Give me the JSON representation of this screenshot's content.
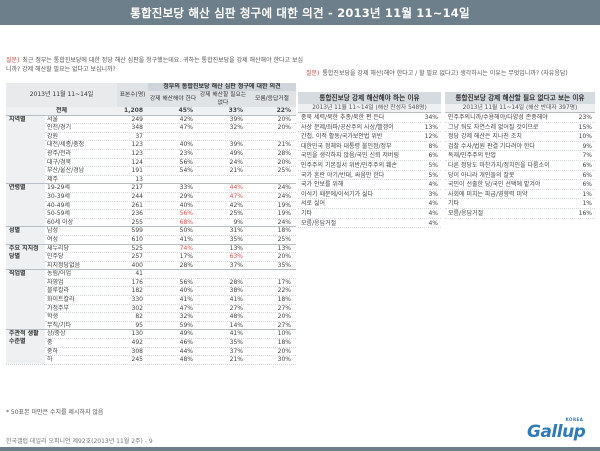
{
  "header": {
    "title": "통합진보당 해산 심판 청구에 대한 의견 - 2013년 11월 11~14일"
  },
  "question_left": {
    "mark": "질문)",
    "text": "최근 정부는 통합진보당에 대한 정당 해산 심판을 청구했는데요. 귀하는 통합진보당을 강제 해산해야 한다고 보십니까? 강제 해산할 필요는 없다고 보십니까?"
  },
  "question_right": {
    "mark": "질문)",
    "text": "통합진보당을 강제 해산(해야 한다고 / 할 필요 없다고) 생각하시는 이유는 무엇입니까? (자유응답)"
  },
  "table": {
    "period": "2013년 11월 11~14일",
    "base_label": "표본수(명)",
    "span_header": "정부의 통합진보당 해산 심판 청구에 대한 의견",
    "col_dissolve": "강제 해산해야 한다",
    "col_no_need": "강제 해산할 필요는 없다",
    "col_unsure": "모름/응답거절",
    "total": {
      "label": "전체",
      "n": "1,208",
      "a": "45%",
      "b": "33%",
      "c": "22%"
    },
    "groups": [
      {
        "cat": "지역별",
        "rows": [
          {
            "label": "서울",
            "n": "249",
            "a": "42%",
            "b": "39%",
            "c": "20%"
          },
          {
            "label": "인천/경기",
            "n": "348",
            "a": "47%",
            "b": "32%",
            "c": "20%"
          },
          {
            "label": "강원",
            "n": "37",
            "a": "",
            "b": "",
            "c": ""
          },
          {
            "label": "대전/세종/충청",
            "n": "123",
            "a": "40%",
            "b": "39%",
            "c": "21%"
          },
          {
            "label": "광주/전라",
            "n": "123",
            "a": "23%",
            "b": "49%",
            "c": "28%"
          },
          {
            "label": "대구/경북",
            "n": "124",
            "a": "56%",
            "b": "24%",
            "c": "20%"
          },
          {
            "label": "부산/울산/경남",
            "n": "191",
            "a": "54%",
            "b": "21%",
            "c": "25%"
          },
          {
            "label": "제주",
            "n": "13",
            "a": "",
            "b": "",
            "c": ""
          }
        ]
      },
      {
        "cat": "연령별",
        "rows": [
          {
            "label": "19-29세",
            "n": "217",
            "a": "33%",
            "b": "44%",
            "c": "24%",
            "b_red": true
          },
          {
            "label": "30-39세",
            "n": "244",
            "a": "29%",
            "b": "47%",
            "c": "24%",
            "b_red": true
          },
          {
            "label": "40-49세",
            "n": "261",
            "a": "40%",
            "b": "42%",
            "c": "19%"
          },
          {
            "label": "50-59세",
            "n": "236",
            "a": "56%",
            "b": "25%",
            "c": "19%",
            "a_red": true
          },
          {
            "label": "60세 이상",
            "n": "255",
            "a": "68%",
            "b": "9%",
            "c": "24%",
            "a_red": true
          }
        ]
      },
      {
        "cat": "성별",
        "rows": [
          {
            "label": "남성",
            "n": "599",
            "a": "50%",
            "b": "31%",
            "c": "18%"
          },
          {
            "label": "여성",
            "n": "610",
            "a": "41%",
            "b": "35%",
            "c": "25%"
          }
        ]
      },
      {
        "cat": "주요 지지정당별",
        "rows": [
          {
            "label": "새누리당",
            "n": "525",
            "a": "74%",
            "b": "13%",
            "c": "13%",
            "a_red": true
          },
          {
            "label": "민주당",
            "n": "257",
            "a": "17%",
            "b": "63%",
            "c": "20%",
            "b_red": true
          },
          {
            "label": "지지정당없음",
            "n": "400",
            "a": "28%",
            "b": "37%",
            "c": "35%"
          }
        ]
      },
      {
        "cat": "직업별",
        "rows": [
          {
            "label": "농림/어업",
            "n": "41",
            "a": "",
            "b": "",
            "c": ""
          },
          {
            "label": "자영업",
            "n": "176",
            "a": "56%",
            "b": "28%",
            "c": "17%"
          },
          {
            "label": "블루칼라",
            "n": "182",
            "a": "40%",
            "b": "38%",
            "c": "22%"
          },
          {
            "label": "화이트칼라",
            "n": "330",
            "a": "41%",
            "b": "41%",
            "c": "18%"
          },
          {
            "label": "가정주부",
            "n": "302",
            "a": "47%",
            "b": "27%",
            "c": "27%"
          },
          {
            "label": "학생",
            "n": "82",
            "a": "32%",
            "b": "48%",
            "c": "20%"
          },
          {
            "label": "무직/기타",
            "n": "95",
            "a": "59%",
            "b": "14%",
            "c": "27%"
          }
        ]
      },
      {
        "cat": "주관적 생활수준별",
        "rows": [
          {
            "label": "상/중상",
            "n": "130",
            "a": "49%",
            "b": "41%",
            "c": "10%"
          },
          {
            "label": "중",
            "n": "492",
            "a": "46%",
            "b": "35%",
            "c": "18%"
          },
          {
            "label": "중하",
            "n": "308",
            "a": "44%",
            "b": "37%",
            "c": "20%"
          },
          {
            "label": "하",
            "n": "245",
            "a": "48%",
            "b": "21%",
            "c": "30%"
          }
        ]
      }
    ]
  },
  "reasons_dissolve": {
    "title": "통합진보당 강제 해산해야 하는 이유",
    "subtitle": "2013년 11월 11~14일 (해산 찬성자 548명)",
    "items": [
      {
        "label": "종북 세력/북한 추종/북한 편 든다",
        "value": "34%"
      },
      {
        "label": "사상 문제/좌파/공산주의 사상/빨갱이",
        "value": "13%"
      },
      {
        "label": "간첩, 이적 활동/국가보안법 위반",
        "value": "12%"
      },
      {
        "label": "대한민국 정체와 대통령 불인정/정부",
        "value": "8%"
      },
      {
        "label": "국민을 생각하지 않음/국민 신뢰 저버림",
        "value": "6%"
      },
      {
        "label": "민주주의 기본질서 위반/민주주의 훼손",
        "value": "5%"
      },
      {
        "label": "국가 혼란 야기/반대, 싸움만 한다",
        "value": "5%"
      },
      {
        "label": "국가 안보를 위해",
        "value": "4%"
      },
      {
        "label": "이석기 때문에/이석기가 싫다",
        "value": "3%"
      },
      {
        "label": "서로 싫어",
        "value": "4%"
      },
      {
        "label": "기타",
        "value": "4%"
      },
      {
        "label": "모름/응답거절",
        "value": "4%"
      }
    ]
  },
  "reasons_no_need": {
    "title": "통합진보당 강제 해산할 필요 없다고 보는 이유",
    "subtitle": "2013년 11월 11~14일 (해산 반대자 397명)",
    "items": [
      {
        "label": "민주주의니까/수용해야/다양성 존중해야",
        "value": "23%"
      },
      {
        "label": "그냥 둬도 자연스레 없어질 것이므로",
        "value": "15%"
      },
      {
        "label": "정당 강제 해산은 지나친 조치",
        "value": "10%"
      },
      {
        "label": "검찰 수사/법원 판결 기다려야 한다",
        "value": "9%"
      },
      {
        "label": "독재/민주주의 탄압",
        "value": "7%"
      },
      {
        "label": "다른 정당도 마찬가지/정치인을 다룸소이",
        "value": "6%"
      },
      {
        "label": "당이 아니라 개인들의 잘못",
        "value": "6%"
      },
      {
        "label": "국민이 선출한 당/국민 선택에 맡겨야",
        "value": "6%"
      },
      {
        "label": "사회에 미치는 파급/영향력 미약",
        "value": "1%"
      },
      {
        "label": "기타",
        "value": "1%"
      },
      {
        "label": "모름/응답거절",
        "value": "16%"
      }
    ]
  },
  "footnote": "* 50표본 미만은 수치를 제시하지 않음",
  "source": "한국갤럽 데일리 오피니언 제92호(2013년 11월 2주) - 9",
  "logo": {
    "text": "Gallup",
    "sub": "KOREA"
  }
}
